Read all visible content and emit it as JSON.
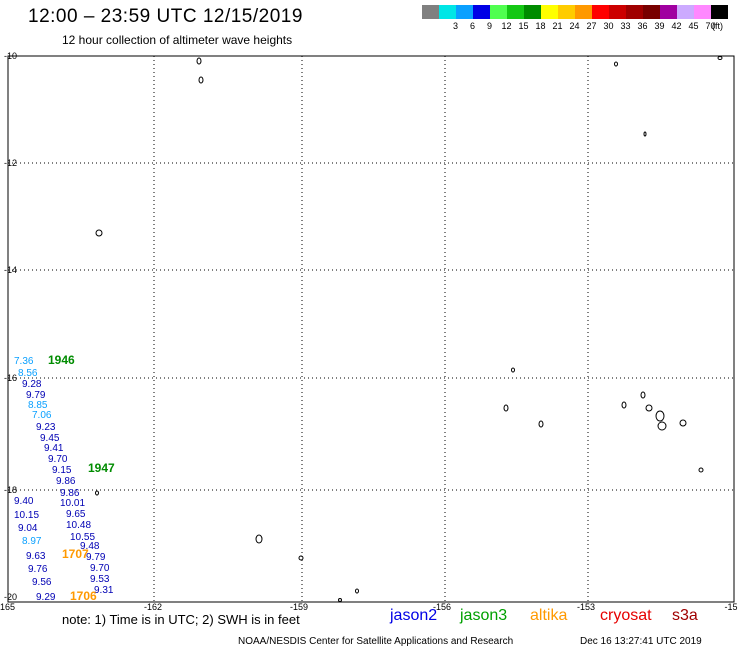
{
  "header": {
    "title": "12:00 – 23:59 UTC 12/15/2019",
    "subtitle": "12 hour collection of altimeter wave heights"
  },
  "scale": {
    "unit": "(ft)",
    "swatches": [
      {
        "color": "#808080",
        "label": ""
      },
      {
        "color": "#00e6e6",
        "label": "3"
      },
      {
        "color": "#0aa0ff",
        "label": "6"
      },
      {
        "color": "#0000e6",
        "label": "9"
      },
      {
        "color": "#50ff50",
        "label": "12"
      },
      {
        "color": "#14c814",
        "label": "15"
      },
      {
        "color": "#008c00",
        "label": "18"
      },
      {
        "color": "#ffff00",
        "label": "21"
      },
      {
        "color": "#ffcc00",
        "label": "24"
      },
      {
        "color": "#ff9900",
        "label": "27"
      },
      {
        "color": "#ff0000",
        "label": "30"
      },
      {
        "color": "#cc0000",
        "label": "33"
      },
      {
        "color": "#a00000",
        "label": "36"
      },
      {
        "color": "#780000",
        "label": "39"
      },
      {
        "color": "#a000a0",
        "label": "42"
      },
      {
        "color": "#ccaaff",
        "label": "45"
      },
      {
        "color": "#ff88ff",
        "label": "70"
      },
      {
        "color": "#000000",
        "label": ""
      }
    ]
  },
  "axes": {
    "lon_ticks": [
      "-165",
      "-162",
      "-159",
      "-156",
      "-153",
      "-15"
    ],
    "lat_ticks": [
      "-10",
      "-12",
      "-14",
      "-16",
      "-18",
      "-20"
    ]
  },
  "observations": [
    {
      "text": "7.36",
      "color": "#0aa0ff"
    },
    {
      "text": "1946",
      "color": "#008c00"
    },
    {
      "text": "8.56",
      "color": "#0aa0ff"
    },
    {
      "text": "9.28",
      "color": "#0000b4"
    },
    {
      "text": "9.79",
      "color": "#0000b4"
    },
    {
      "text": "8.85",
      "color": "#0aa0ff"
    },
    {
      "text": "7.06",
      "color": "#0aa0ff"
    },
    {
      "text": "9.23",
      "color": "#0000b4"
    },
    {
      "text": "9.45",
      "color": "#0000b4"
    },
    {
      "text": "9.41",
      "color": "#0000b4"
    },
    {
      "text": "9.70",
      "color": "#0000b4"
    },
    {
      "text": "9.15",
      "color": "#0000b4"
    },
    {
      "text": "1947",
      "color": "#008c00"
    },
    {
      "text": "9.86",
      "color": "#0000b4"
    },
    {
      "text": "9.86",
      "color": "#0000b4"
    },
    {
      "text": "9.40",
      "color": "#0000b4"
    },
    {
      "text": "10.01",
      "color": "#0000b4"
    },
    {
      "text": "10.15",
      "color": "#0000b4"
    },
    {
      "text": "9.65",
      "color": "#0000b4"
    },
    {
      "text": "9.04",
      "color": "#0000b4"
    },
    {
      "text": "10.48",
      "color": "#0000b4"
    },
    {
      "text": "10.55",
      "color": "#0000b4"
    },
    {
      "text": "8.97",
      "color": "#0aa0ff"
    },
    {
      "text": "9.48",
      "color": "#0000b4"
    },
    {
      "text": "9.63",
      "color": "#0000b4"
    },
    {
      "text": "1707",
      "color": "#ff9900"
    },
    {
      "text": "9.79",
      "color": "#0000b4"
    },
    {
      "text": "9.76",
      "color": "#0000b4"
    },
    {
      "text": "9.70",
      "color": "#0000b4"
    },
    {
      "text": "9.56",
      "color": "#0000b4"
    },
    {
      "text": "9.53",
      "color": "#0000b4"
    },
    {
      "text": "9.31",
      "color": "#0000b4"
    },
    {
      "text": "9.29",
      "color": "#0000b4"
    },
    {
      "text": "1706",
      "color": "#ff9900"
    }
  ],
  "footer": {
    "note": "note:  1) Time is in UTC;  2) SWH is in feet",
    "satellites": [
      {
        "name": "jason2",
        "color": "#0000e6"
      },
      {
        "name": "jason3",
        "color": "#00a000"
      },
      {
        "name": "altika",
        "color": "#ff9900"
      },
      {
        "name": "cryosat",
        "color": "#e60000"
      },
      {
        "name": "s3a",
        "color": "#a00000"
      }
    ],
    "credit": "NOAA/NESDIS Center for Satellite Applications and Research",
    "date": "Dec 16 13:27:41 UTC 2019"
  }
}
